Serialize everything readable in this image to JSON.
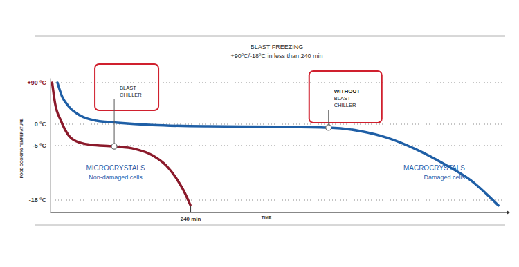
{
  "chart_data": {
    "type": "line",
    "title": "BLAST FREEZING",
    "subtitle": "+90ºC/-18ºC in less than 240 min",
    "x_label": "TIME",
    "y_label": "FOOD COOKING TEMPERATURE",
    "xlim": [
      0,
      780
    ],
    "xticks": [
      {
        "value": 240,
        "label": "240 min"
      }
    ],
    "ylim": [
      -21,
      100
    ],
    "yticks": [
      {
        "value": -18,
        "label": "-18 ºC"
      },
      {
        "value": -5,
        "label": "-5 ºC"
      },
      {
        "value": 0,
        "label": "0 ºC"
      },
      {
        "value": 90,
        "label": "+90 ºC"
      }
    ],
    "grid": true,
    "series": [
      {
        "color": "#1f5fa6",
        "x": [
          13,
          21,
          33,
          51,
          80,
          116,
          175,
          270,
          388,
          476,
          530,
          577,
          624,
          671,
          719,
          766
        ],
        "values": [
          90,
          60,
          37.5,
          19.5,
          7.5,
          3,
          -0.2,
          -0.5,
          -0.6,
          -0.8,
          -1.6,
          -3.2,
          -5.8,
          -9.2,
          -13.3,
          -19.3
        ]
      },
      {
        "color": "#8b1a2b",
        "x": [
          4,
          9,
          19,
          31,
          45,
          69,
          110,
          145,
          175,
          199,
          216,
          228,
          240
        ],
        "values": [
          90,
          45,
          7.5,
          -2.4,
          -4,
          -4.8,
          -5.2,
          -5.8,
          -7.3,
          -9.8,
          -12.8,
          -15.6,
          -19.2
        ]
      }
    ],
    "annotations": [
      {
        "x": 110,
        "y": -5.2,
        "lines": [
          "BLAST",
          "CHILLER"
        ]
      },
      {
        "x": 476,
        "y": -0.8,
        "lead": "WITHOUT",
        "lines": [
          "BLAST",
          "CHILLER"
        ]
      }
    ],
    "regions": [
      {
        "title": "MICROCRYSTALS",
        "text": "Non-damaged cells"
      },
      {
        "title": "MACROCRYSTALS",
        "text": "Damaged cells"
      }
    ]
  }
}
